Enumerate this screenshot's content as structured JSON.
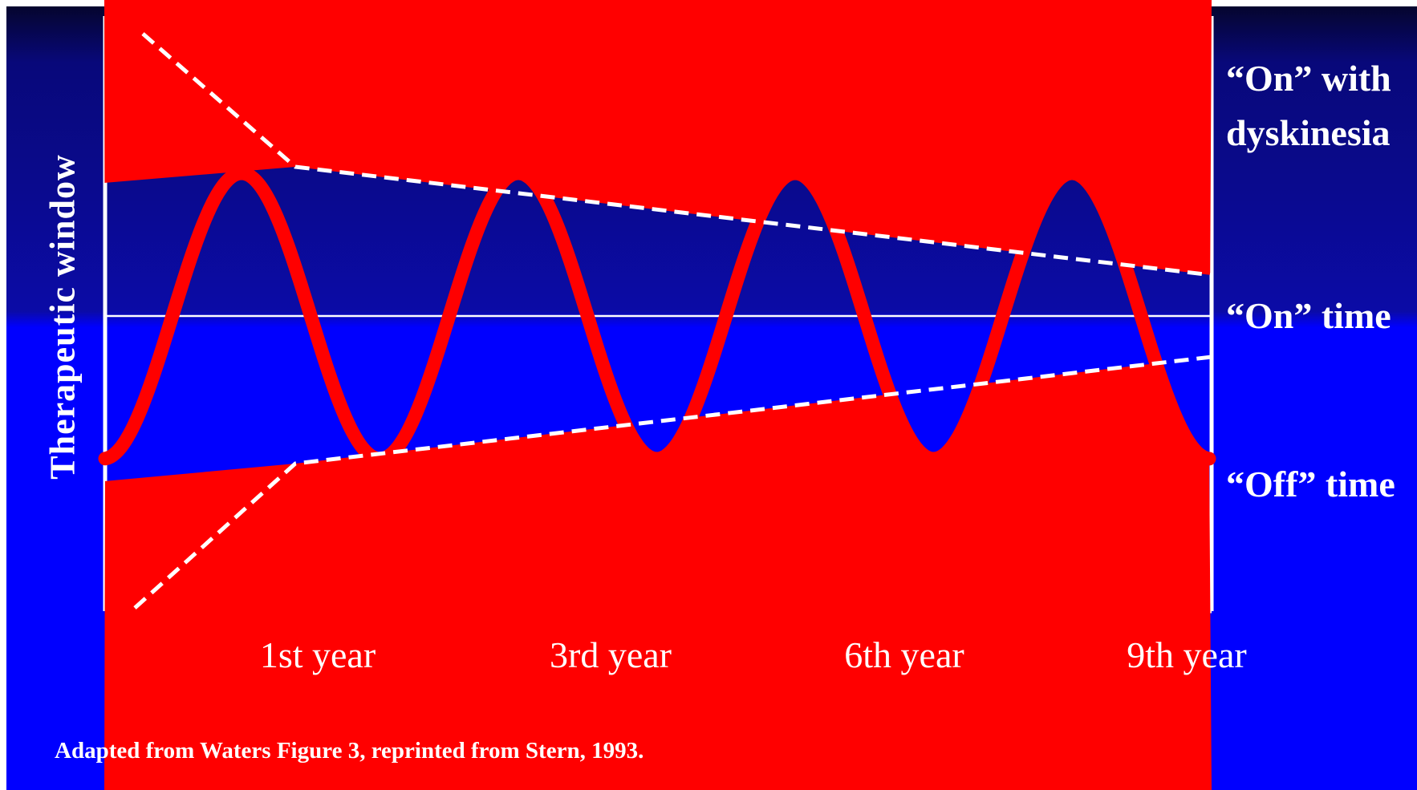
{
  "y_axis_label": "Therapeutic window",
  "right_labels": {
    "dyskinesia_line1": "“On” with",
    "dyskinesia_line2": "dyskinesia",
    "on_time": "“On” time",
    "off_time": "“Off” time"
  },
  "x_ticks": [
    "1st year",
    "3rd year",
    "6th year",
    "9th year"
  ],
  "source_note": "Adapted from Waters Figure 3, reprinted from Stern, 1993.",
  "colors": {
    "background_top": "#08087a",
    "background_bottom": "#0000ff",
    "curve": "#ff0000",
    "lines": "#ffffff"
  }
}
